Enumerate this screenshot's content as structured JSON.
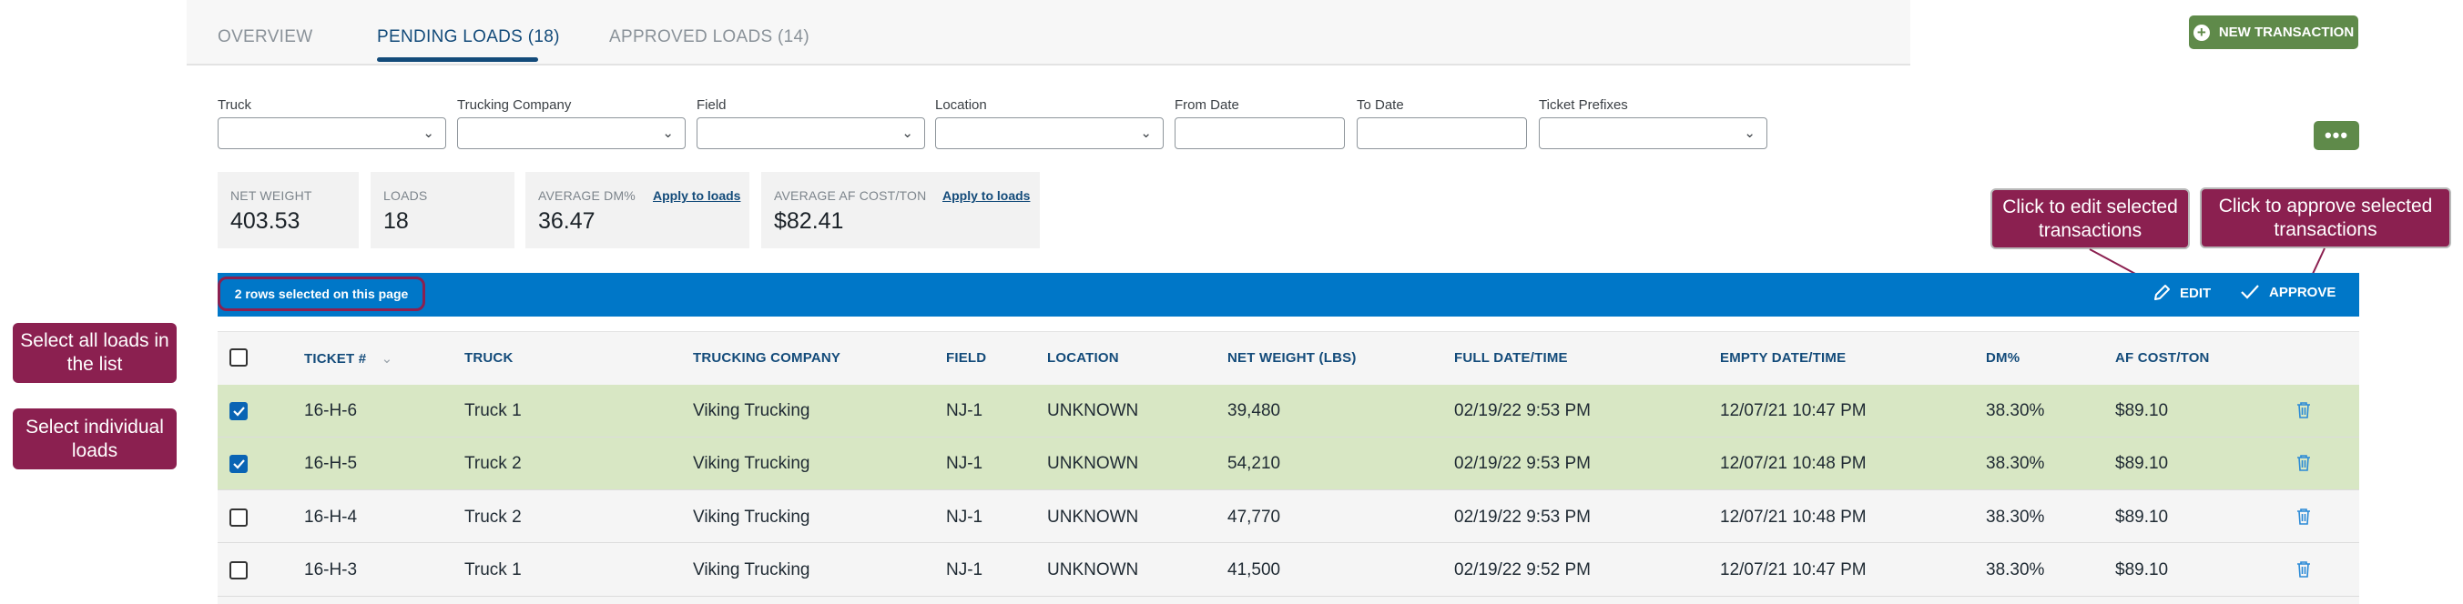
{
  "tabs": [
    {
      "label": "OVERVIEW",
      "active": false
    },
    {
      "label": "PENDING LOADS (18)",
      "active": true
    },
    {
      "label": "APPROVED LOADS (14)",
      "active": false
    }
  ],
  "toolbar": {
    "new_transaction": "NEW TRANSACTION",
    "more": "•••"
  },
  "filters": {
    "truck": "Truck",
    "trucking_company": "Trucking Company",
    "field": "Field",
    "location": "Location",
    "from_date": "From Date",
    "to_date": "To Date",
    "ticket_prefixes": "Ticket Prefixes"
  },
  "stats": {
    "net_weight": {
      "label": "NET WEIGHT",
      "value": "403.53"
    },
    "loads": {
      "label": "LOADS",
      "value": "18"
    },
    "avg_dm": {
      "label": "AVERAGE DM%",
      "value": "36.47",
      "apply": "Apply to loads"
    },
    "avg_af": {
      "label": "AVERAGE AF COST/TON",
      "value": "$82.41",
      "apply": "Apply to loads"
    }
  },
  "selection_bar": {
    "text": "2 rows selected on this page",
    "edit": "EDIT",
    "approve": "APPROVE"
  },
  "columns": {
    "ticket": "TICKET #",
    "truck": "TRUCK",
    "company": "TRUCKING COMPANY",
    "field": "FIELD",
    "location": "LOCATION",
    "net_weight": "NET WEIGHT (LBS)",
    "full_date": "FULL DATE/TIME",
    "empty_date": "EMPTY DATE/TIME",
    "dm": "DM%",
    "af_cost": "AF COST/TON"
  },
  "rows": [
    {
      "ticket": "16-H-6",
      "truck": "Truck 1",
      "company": "Viking Trucking",
      "field": "NJ-1",
      "location": "UNKNOWN",
      "net_weight": "39,480",
      "full_date": "02/19/22 9:53 PM",
      "empty_date": "12/07/21 10:47 PM",
      "dm": "38.30%",
      "af_cost": "$89.10",
      "selected": true
    },
    {
      "ticket": "16-H-5",
      "truck": "Truck 2",
      "company": "Viking Trucking",
      "field": "NJ-1",
      "location": "UNKNOWN",
      "net_weight": "54,210",
      "full_date": "02/19/22 9:53 PM",
      "empty_date": "12/07/21 10:48 PM",
      "dm": "38.30%",
      "af_cost": "$89.10",
      "selected": true
    },
    {
      "ticket": "16-H-4",
      "truck": "Truck 2",
      "company": "Viking Trucking",
      "field": "NJ-1",
      "location": "UNKNOWN",
      "net_weight": "47,770",
      "full_date": "02/19/22 9:53 PM",
      "empty_date": "12/07/21 10:48 PM",
      "dm": "38.30%",
      "af_cost": "$89.10",
      "selected": false
    },
    {
      "ticket": "16-H-3",
      "truck": "Truck 1",
      "company": "Viking Trucking",
      "field": "NJ-1",
      "location": "UNKNOWN",
      "net_weight": "41,500",
      "full_date": "02/19/22 9:52 PM",
      "empty_date": "12/07/21 10:47 PM",
      "dm": "38.30%",
      "af_cost": "$89.10",
      "selected": false
    }
  ],
  "callouts": {
    "select_all": "Select all loads in the list",
    "select_individual": "Select individual loads",
    "edit": "Click to edit selected transactions",
    "approve": "Click to approve selected transactions"
  },
  "icons": [
    "plus-circle-icon",
    "chevron-down-icon",
    "pencil-icon",
    "check-icon",
    "sort-icon",
    "checkbox-check-icon",
    "trash-icon"
  ],
  "colors": {
    "primary": "#134b7a",
    "bar": "#0077c8",
    "green": "#5f8a4a",
    "selected_row": "#d8e7c4",
    "callout": "#8b2050"
  }
}
